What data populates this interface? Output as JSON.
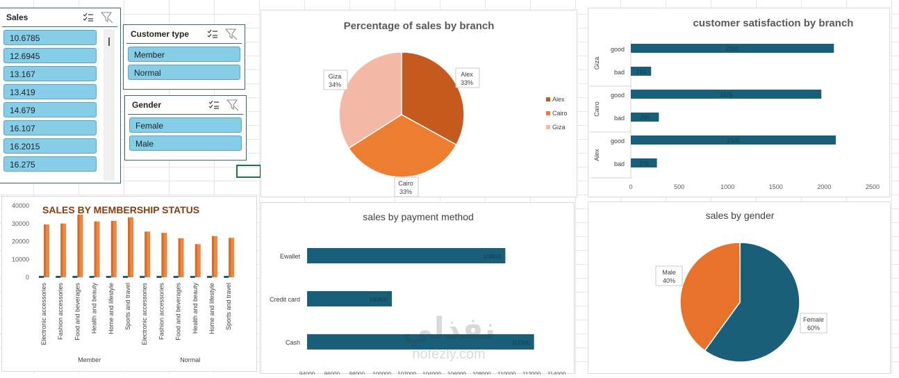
{
  "slicers": {
    "sales": {
      "title": "Sales",
      "items": [
        "10.6785",
        "12.6945",
        "13.167",
        "13.419",
        "14.679",
        "16.107",
        "16.2015",
        "16.275"
      ]
    },
    "customer_type": {
      "title": "Customer type",
      "items": [
        "Member",
        "Normal"
      ]
    },
    "gender": {
      "title": "Gender",
      "items": [
        "Female",
        "Male"
      ]
    }
  },
  "chart_data": [
    {
      "id": "branch_pie",
      "type": "pie",
      "title": "Percentage of sales by branch",
      "categories": [
        "Alex",
        "Cairo",
        "Giza"
      ],
      "values": [
        33,
        33,
        34
      ],
      "labels": [
        "33%",
        "33%",
        "34%"
      ],
      "colors": [
        "#c55a1e",
        "#ed7d31",
        "#f4b9a5"
      ],
      "legend": "right"
    },
    {
      "id": "satisfaction_bar",
      "type": "bar",
      "title": "customer satisfaction by branch",
      "groups": [
        "Giza",
        "Cairo",
        "Alex"
      ],
      "categories": [
        "good",
        "bad"
      ],
      "values": [
        [
          2100,
          210
        ],
        [
          1970,
          290
        ],
        [
          2120,
          270
        ]
      ],
      "xlim": [
        0,
        2500
      ],
      "xticks": [
        "0",
        "500",
        "1000",
        "1500",
        "2000",
        "2500"
      ],
      "color": "#1a5f7a"
    },
    {
      "id": "membership_bar",
      "type": "bar",
      "title": "SALES BY MEMBERSHIP STATUS",
      "groups": [
        "Member",
        "Normal"
      ],
      "categories": [
        "Electronic accessories",
        "Fashion accessories",
        "Food and beverages",
        "Health and beauty",
        "Home and lifestyle",
        "Sports and travel"
      ],
      "values": [
        [
          29500,
          30000,
          35000,
          31200,
          31500,
          33500
        ],
        [
          25500,
          24800,
          21800,
          18500,
          23000,
          22000
        ]
      ],
      "ylim": [
        0,
        40000
      ],
      "yticks": [
        "0",
        "10000",
        "20000",
        "30000",
        "40000"
      ],
      "color": "#ed7d31"
    },
    {
      "id": "payment_bar",
      "type": "bar",
      "title": "sales by payment method",
      "categories": [
        "Ewallet",
        "Credit card",
        "Cash"
      ],
      "values": [
        109900,
        100800,
        112200
      ],
      "xlim": [
        94000,
        114000
      ],
      "xticks": [
        "94000",
        "96000",
        "98000",
        "100000",
        "102000",
        "104000",
        "106000",
        "108000",
        "110000",
        "112000",
        "114000"
      ],
      "color": "#1a5f7a"
    },
    {
      "id": "gender_pie",
      "type": "pie",
      "title": "sales by gender",
      "categories": [
        "Female",
        "Male"
      ],
      "values": [
        60,
        40
      ],
      "labels": [
        "60%",
        "40%"
      ],
      "colors": [
        "#1a5f7a",
        "#e8722a"
      ]
    }
  ],
  "watermark": {
    "arabic": "نفذلي",
    "latin": "nofezly.com"
  }
}
